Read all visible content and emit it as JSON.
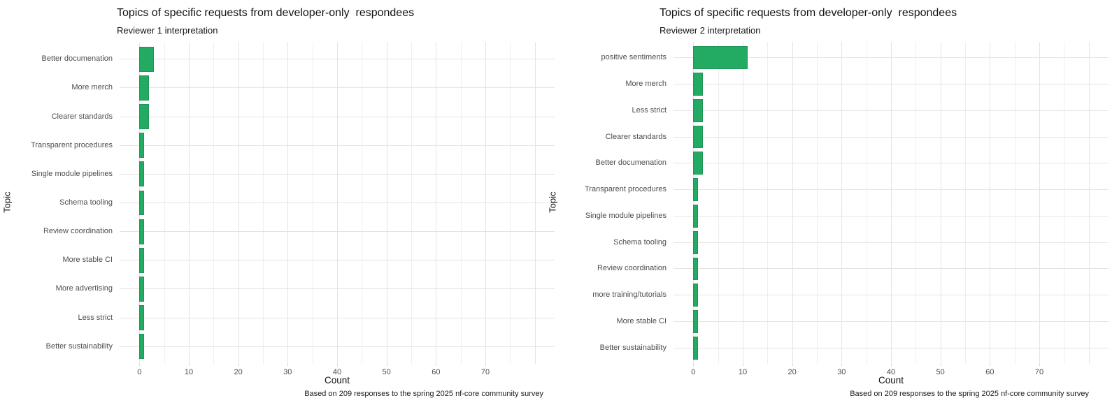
{
  "colors": {
    "bar_fill": "#24ab63",
    "bar_border": "#1e9455",
    "grid_major": "#e4e4e4",
    "grid_minor": "#efefef",
    "tick_mark": "#d6d6d6",
    "axis_text": "#4d4d4d",
    "title_text": "#131313"
  },
  "chart_data": [
    {
      "type": "bar",
      "orientation": "horizontal",
      "title": "Topics of specific requests from developer-only  respondees",
      "subtitle": "Reviewer 1 interpretation",
      "xlabel": "Count",
      "ylabel": "Topic",
      "caption": "Based on 209 responses to the spring 2025 nf-core community survey",
      "categories": [
        "Better documenation",
        "More merch",
        "Clearer standards",
        "Transparent procedures",
        "Single module pipelines",
        "Schema tooling",
        "Review coordination",
        "More stable CI",
        "More advertising",
        "Less strict",
        "Better sustainability"
      ],
      "values": [
        3,
        2,
        2,
        1,
        1,
        1,
        1,
        1,
        1,
        1,
        1
      ],
      "x_ticks": [
        0,
        10,
        20,
        30,
        40,
        50,
        60,
        70
      ],
      "xlim": [
        -4,
        84
      ],
      "x_data_max": 80,
      "minor_step": 5,
      "grid": true,
      "legend": false
    },
    {
      "type": "bar",
      "orientation": "horizontal",
      "title": "Topics of specific requests from developer-only  respondees",
      "subtitle": "Reviewer 2 interpretation",
      "xlabel": "Count",
      "ylabel": "Topic",
      "caption": "Based on 209 responses to the spring 2025 nf-core community survey",
      "categories": [
        "positive sentiments",
        "More merch",
        "Less strict",
        "Clearer standards",
        "Better documenation",
        "Transparent procedures",
        "Single module pipelines",
        "Schema tooling",
        "Review coordination",
        "more training/tutorials",
        "More stable CI",
        "Better sustainability"
      ],
      "values": [
        11,
        2,
        2,
        2,
        2,
        1,
        1,
        1,
        1,
        1,
        1,
        1
      ],
      "x_ticks": [
        0,
        10,
        20,
        30,
        40,
        50,
        60,
        70
      ],
      "xlim": [
        -4,
        84
      ],
      "x_data_max": 80,
      "minor_step": 5,
      "grid": true,
      "legend": false
    }
  ]
}
